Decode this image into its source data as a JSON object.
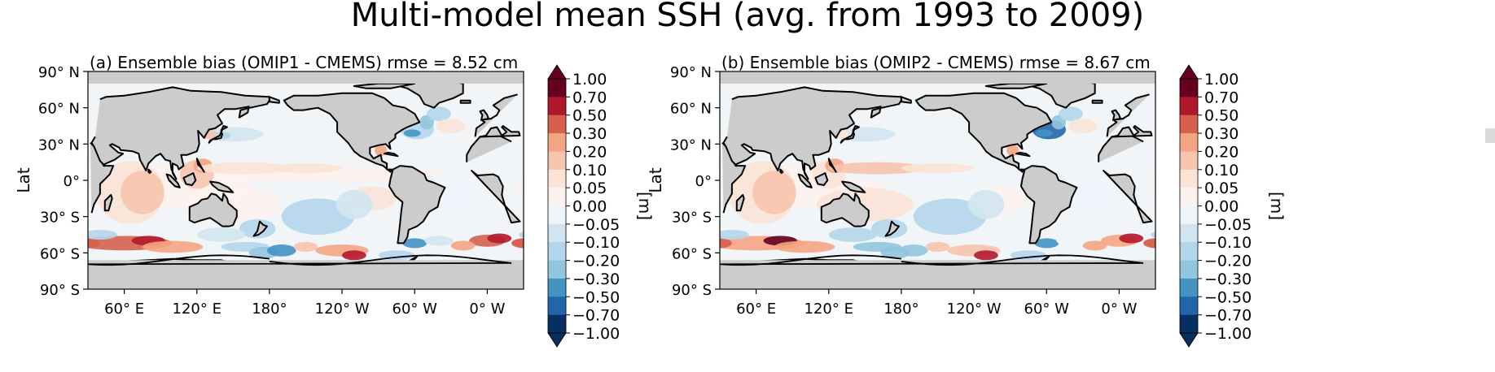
{
  "figure": {
    "suptitle": "Multi-model mean SSH (avg. from 1993 to 2009)"
  },
  "chart_data": [
    {
      "type": "heatmap",
      "title": "(a) Ensemble bias (OMIP1 - CMEMS) rmse = 8.52 cm",
      "ylabel": "Lat",
      "xlabel": "",
      "colorbar_label": "[m]",
      "x_ticks": [
        "60° E",
        "120° E",
        "180°",
        "120° W",
        "60° W",
        "0° W"
      ],
      "y_ticks": [
        "90° N",
        "60° N",
        "30° N",
        "0°",
        "30° S",
        "60° S",
        "90° S"
      ],
      "colorbar_ticks": [
        "1.00",
        "0.70",
        "0.50",
        "0.30",
        "0.20",
        "0.10",
        "0.05",
        "0.00",
        "−0.05",
        "−0.10",
        "−0.20",
        "−0.30",
        "−0.50",
        "−0.70",
        "−1.00"
      ],
      "colorbar_extend": "both",
      "rmse_cm": 8.52,
      "land_color": "#cccccc",
      "colormap": "RdBu_r"
    },
    {
      "type": "heatmap",
      "title": "(b) Ensemble bias (OMIP2 - CMEMS) rmse = 8.67 cm",
      "ylabel": "Lat",
      "xlabel": "",
      "colorbar_label": "[m]",
      "x_ticks": [
        "60° E",
        "120° E",
        "180°",
        "120° W",
        "60° W",
        "0° W"
      ],
      "y_ticks": [
        "90° N",
        "60° N",
        "30° N",
        "0°",
        "30° S",
        "60° S",
        "90° S"
      ],
      "colorbar_ticks": [
        "1.00",
        "0.70",
        "0.50",
        "0.30",
        "0.20",
        "0.10",
        "0.05",
        "0.00",
        "−0.05",
        "−0.10",
        "−0.20",
        "−0.30",
        "−0.50",
        "−0.70",
        "−1.00"
      ],
      "colorbar_extend": "both",
      "rmse_cm": 8.67,
      "land_color": "#cccccc",
      "colormap": "RdBu_r"
    }
  ],
  "colors": {
    "levels": [
      "#67001f",
      "#b2182b",
      "#d6604d",
      "#f4a582",
      "#f7c4ad",
      "#fbe3d6",
      "#fdf3ee",
      "#eef5fa",
      "#d1e5f0",
      "#b4d6ea",
      "#92c5de",
      "#4393c3",
      "#2166ac",
      "#053061"
    ]
  }
}
